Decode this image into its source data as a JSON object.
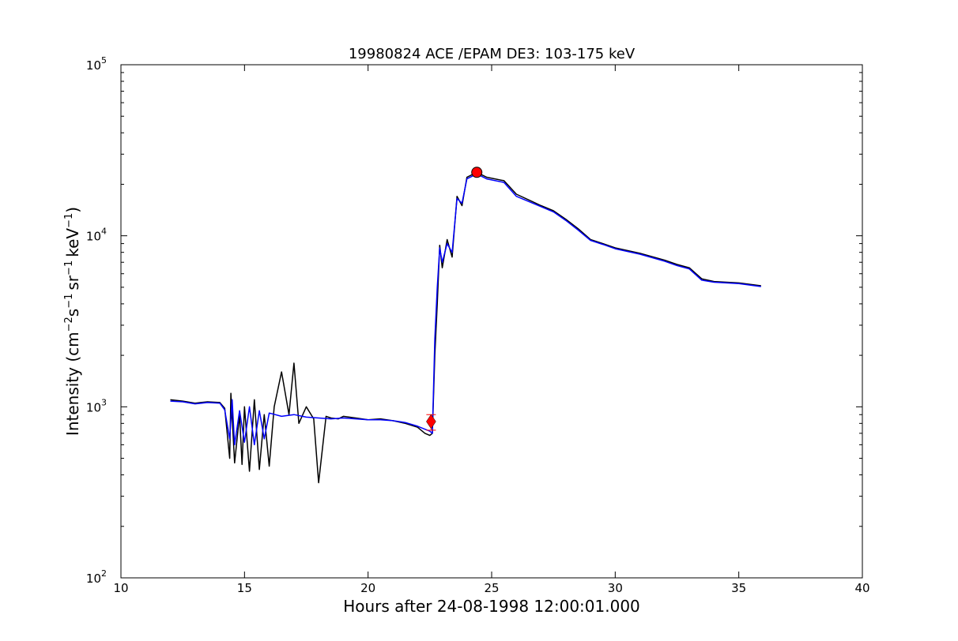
{
  "chart_data": {
    "type": "line",
    "title": "19980824 ACE /EPAM DE3: 103-175 keV",
    "xlabel": "Hours after 24-08-1998 12:00:01.000",
    "ylabel": {
      "prefix": "Intensity (cm",
      "sup1": "−2",
      "mid1": "s",
      "sup2": "−1",
      "mid2": "sr",
      "sup3": "−1",
      "mid3": "keV",
      "sup4": "−1",
      "suffix": ")"
    },
    "xlim": [
      10,
      40
    ],
    "ylim": [
      100,
      100000
    ],
    "yscale": "log",
    "grid": false,
    "xticks": [
      "10",
      "15",
      "20",
      "25",
      "30",
      "35",
      "40"
    ],
    "yticks": [
      {
        "base": "10",
        "exp": "2"
      },
      {
        "base": "10",
        "exp": "3"
      },
      {
        "base": "10",
        "exp": "4"
      },
      {
        "base": "10",
        "exp": "5"
      }
    ],
    "series": [
      {
        "color": "#000000",
        "x": [
          12.0,
          12.5,
          13.0,
          13.5,
          14.0,
          14.2,
          14.4,
          14.45,
          14.6,
          14.8,
          14.9,
          15.0,
          15.2,
          15.4,
          15.6,
          15.8,
          16.0,
          16.2,
          16.5,
          16.8,
          17.0,
          17.2,
          17.5,
          17.8,
          18.0,
          18.3,
          18.5,
          18.8,
          19.0,
          19.5,
          20.0,
          20.5,
          21.0,
          21.5,
          22.0,
          22.3,
          22.5,
          22.6,
          22.7,
          22.8,
          22.9,
          23.0,
          23.2,
          23.4,
          23.6,
          23.8,
          24.0,
          24.4,
          24.8,
          25.5,
          26.0,
          27.0,
          27.5,
          28.0,
          28.5,
          29.0,
          29.5,
          30.0,
          31.0,
          32.0,
          32.5,
          33.0,
          33.5,
          34.0,
          35.0,
          35.9
        ],
        "y": [
          1100,
          1080,
          1050,
          1070,
          1060,
          980,
          500,
          1200,
          470,
          900,
          460,
          1000,
          420,
          1100,
          430,
          900,
          450,
          1000,
          1600,
          900,
          1800,
          800,
          1000,
          850,
          360,
          880,
          860,
          850,
          880,
          860,
          840,
          850,
          830,
          800,
          760,
          700,
          680,
          700,
          2000,
          4000,
          8800,
          6500,
          9500,
          7500,
          17000,
          15000,
          22000,
          23500,
          22000,
          21000,
          17500,
          15000,
          14000,
          12500,
          11000,
          9500,
          9000,
          8500,
          7900,
          7200,
          6800,
          6500,
          5600,
          5400,
          5300,
          5100
        ]
      },
      {
        "color": "#0000ff",
        "x": [
          12.0,
          12.5,
          13.0,
          13.5,
          14.0,
          14.2,
          14.4,
          14.5,
          14.6,
          14.8,
          15.0,
          15.2,
          15.4,
          15.6,
          15.8,
          16.0,
          16.5,
          17.0,
          17.5,
          18.0,
          18.5,
          19.0,
          19.5,
          20.0,
          20.5,
          21.0,
          21.5,
          22.0,
          22.5,
          22.6,
          22.7,
          22.8,
          22.9,
          23.0,
          23.2,
          23.4,
          23.6,
          23.8,
          24.0,
          24.4,
          24.8,
          25.5,
          26.0,
          27.0,
          27.5,
          28.0,
          28.5,
          29.0,
          29.5,
          30.0,
          31.0,
          32.0,
          32.5,
          33.0,
          33.5,
          34.0,
          35.0,
          35.9
        ],
        "y": [
          1080,
          1070,
          1040,
          1060,
          1050,
          960,
          650,
          1100,
          600,
          950,
          620,
          1000,
          600,
          950,
          650,
          920,
          880,
          900,
          870,
          860,
          850,
          860,
          850,
          840,
          840,
          830,
          810,
          770,
          720,
          700,
          2500,
          5000,
          8500,
          7000,
          9000,
          8000,
          16500,
          15500,
          21500,
          23000,
          21500,
          20500,
          17000,
          14800,
          13800,
          12300,
          10800,
          9400,
          8900,
          8400,
          7800,
          7100,
          6700,
          6400,
          5500,
          5350,
          5250,
          5050
        ]
      }
    ],
    "markers": [
      {
        "shape": "diamond",
        "color": "#ff0000",
        "x": 22.55,
        "y": 820,
        "error": [
          730,
          900
        ]
      },
      {
        "shape": "circle",
        "color": "#ff0000",
        "x": 24.4,
        "y": 23500
      }
    ]
  }
}
